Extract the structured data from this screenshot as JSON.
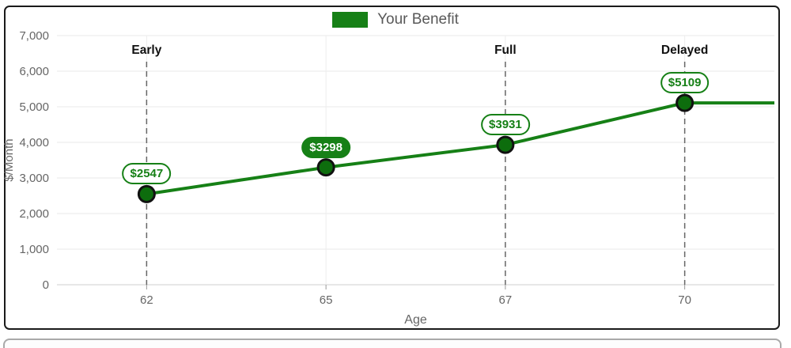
{
  "chart_data": {
    "type": "line",
    "title": "",
    "legend": {
      "label": "Your Benefit",
      "position": "top"
    },
    "x_categories": [
      "62",
      "65",
      "67",
      "70"
    ],
    "series": [
      {
        "name": "Your Benefit",
        "values": [
          2547,
          3298,
          3931,
          5109
        ]
      }
    ],
    "point_labels": [
      "$2547",
      "$3298",
      "$3931",
      "$5109"
    ],
    "selected_point_index": 1,
    "annotations": [
      {
        "x": "62",
        "label": "Early"
      },
      {
        "x": "67",
        "label": "Full"
      },
      {
        "x": "70",
        "label": "Delayed"
      }
    ],
    "xlabel": "Age",
    "ylabel": "$/Month",
    "ylim": [
      0,
      7000
    ],
    "ytick_step": 1000,
    "ytick_labels": [
      "0",
      "1,000",
      "2,000",
      "3,000",
      "4,000",
      "5,000",
      "6,000",
      "7,000"
    ],
    "grid": true,
    "line_extends_right": true
  },
  "colors": {
    "line": "#168016",
    "legend_swatch": "#168016",
    "point_fill": "#0d6d0d",
    "point_stroke": "#111111",
    "pill_bg": "#ffffff",
    "pill_border": "#168016",
    "pill_text": "#168016",
    "pill_selected_bg": "#168016",
    "pill_selected_text": "#ffffff",
    "dashed_line": "#666666",
    "grid_line": "#e8e8e8",
    "vgrid_line": "#ededed",
    "axis_line": "#cfcfcf",
    "tick_mark": "#999999",
    "tick_text": "#666666",
    "annotation_text": "#111111"
  }
}
